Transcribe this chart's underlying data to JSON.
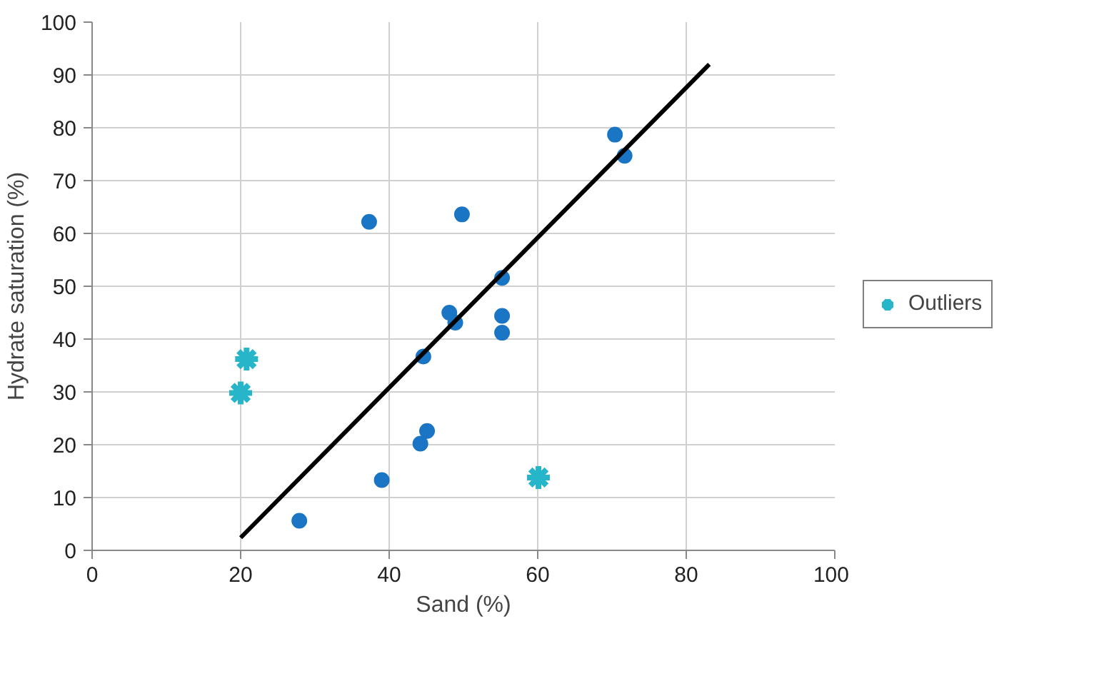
{
  "chart_data": {
    "type": "scatter",
    "xlabel": "Sand (%)",
    "ylabel": "Hydrate saturation (%)",
    "xlim": [
      0,
      100
    ],
    "ylim": [
      0,
      100
    ],
    "xticks": [
      0,
      20,
      40,
      60,
      80,
      100
    ],
    "yticks": [
      0,
      10,
      20,
      30,
      40,
      50,
      60,
      70,
      80,
      90,
      100
    ],
    "grid": true,
    "legend": "right",
    "series": [
      {
        "color": "#1a75c4",
        "marker": "circle",
        "x": [
          27.9,
          39.0,
          44.2,
          45.1,
          44.6,
          48.1,
          48.9,
          37.3,
          49.8,
          55.2,
          55.2,
          55.2,
          70.4,
          71.7
        ],
        "values": [
          5.6,
          13.3,
          20.2,
          22.6,
          36.7,
          45.0,
          43.1,
          62.2,
          63.6,
          51.6,
          44.4,
          41.2,
          78.7,
          74.7
        ]
      },
      {
        "name": "Outliers",
        "color": "#26b5c9",
        "marker": "cross",
        "x": [
          20.8,
          20.0,
          60.1
        ],
        "values": [
          36.2,
          29.8,
          13.8
        ]
      },
      {
        "type": "line",
        "color": "#000000",
        "marker": "none",
        "x": [
          20,
          83.1
        ],
        "values": [
          2.4,
          92.0
        ]
      }
    ]
  }
}
